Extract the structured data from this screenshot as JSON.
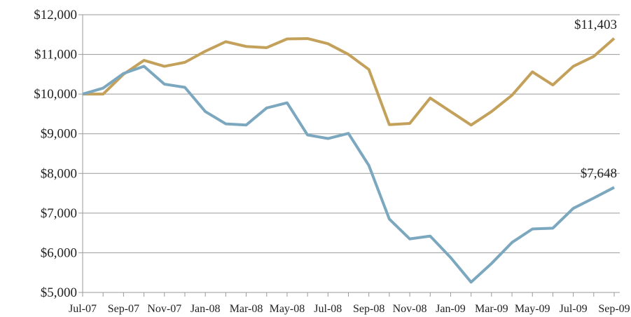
{
  "chart_data": {
    "type": "line",
    "categories": [
      "Jul-07",
      null,
      "Sep-07",
      null,
      "Nov-07",
      null,
      "Jan-08",
      null,
      "Mar-08",
      null,
      "May-08",
      null,
      "Jul-08",
      null,
      "Sep-08",
      null,
      "Nov-08",
      null,
      "Jan-09",
      null,
      "Mar-09",
      null,
      "May-09",
      null,
      "Jul-09",
      null,
      "Sep-09"
    ],
    "series": [
      {
        "color": "#c4a15a",
        "values": [
          10000,
          10000,
          10500,
          10850,
          10700,
          10800,
          11080,
          11320,
          11200,
          11170,
          11390,
          11400,
          11270,
          11000,
          10620,
          9230,
          9260,
          9900,
          9560,
          9220,
          9560,
          9970,
          10560,
          10230,
          10700,
          10950,
          11403
        ],
        "value_labels": [
          null,
          null,
          null,
          null,
          null,
          null,
          null,
          null,
          null,
          null,
          null,
          null,
          null,
          null,
          null,
          null,
          null,
          null,
          null,
          null,
          null,
          null,
          null,
          null,
          null,
          null,
          "$11,403"
        ]
      },
      {
        "color": "#7ba7bf",
        "values": [
          10000,
          10150,
          10520,
          10700,
          10250,
          10170,
          9560,
          9250,
          9220,
          9650,
          9780,
          8970,
          8880,
          9010,
          8200,
          6850,
          6350,
          6420,
          5880,
          5260,
          5730,
          6260,
          6600,
          6620,
          7120,
          7380,
          7648
        ],
        "value_labels": [
          null,
          null,
          null,
          null,
          null,
          null,
          null,
          null,
          null,
          null,
          null,
          null,
          null,
          null,
          null,
          null,
          null,
          null,
          null,
          null,
          null,
          null,
          null,
          null,
          null,
          null,
          "$7,648"
        ]
      }
    ],
    "ylim": [
      5000,
      12000
    ],
    "yticks": [
      {
        "value": 5000,
        "label": "$5,000"
      },
      {
        "value": 6000,
        "label": "$6,000"
      },
      {
        "value": 7000,
        "label": "$7,000"
      },
      {
        "value": 8000,
        "label": "$8,000"
      },
      {
        "value": 9000,
        "label": "$9,000"
      },
      {
        "value": 10000,
        "label": "$10,000"
      },
      {
        "value": 11000,
        "label": "$11,000"
      },
      {
        "value": 12000,
        "label": "$12,000"
      }
    ],
    "grid": true
  }
}
